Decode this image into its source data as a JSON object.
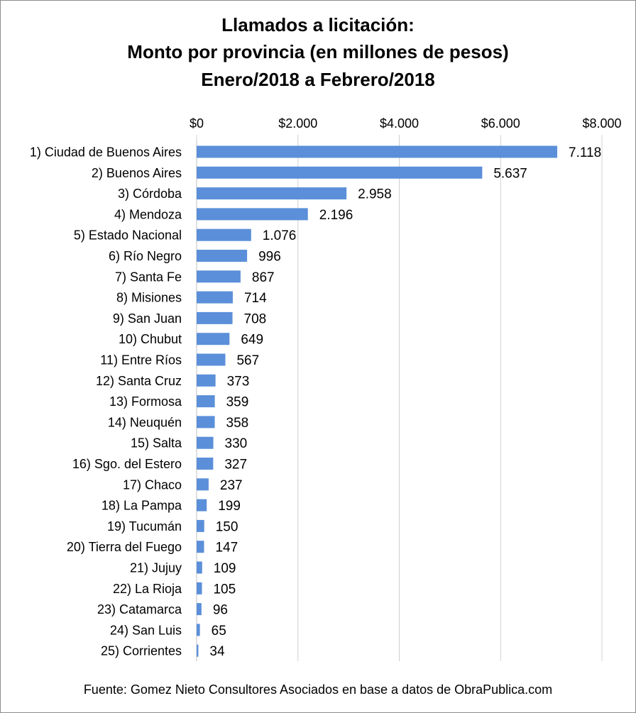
{
  "chart_data": {
    "type": "bar",
    "orientation": "horizontal",
    "title_lines": [
      "Llamados a licitación:",
      "Monto por provincia (en millones de pesos)",
      "Enero/2018 a Febrero/2018"
    ],
    "xlim": [
      0,
      8000
    ],
    "x_ticks": [
      0,
      2000,
      4000,
      6000,
      8000
    ],
    "x_tick_labels": [
      "$0",
      "$2.000",
      "$4.000",
      "$6.000",
      "$8.000"
    ],
    "x_axis_position": "top",
    "grid": true,
    "bar_color": "#5b8fd9",
    "categories": [
      "1) Ciudad de Buenos Aires",
      "2) Buenos Aires",
      "3) Córdoba",
      "4) Mendoza",
      "5) Estado Nacional",
      "6) Río Negro",
      "7) Santa Fe",
      "8) Misiones",
      "9) San Juan",
      "10) Chubut",
      "11) Entre Ríos",
      "12) Santa Cruz",
      "13) Formosa",
      "14) Neuquén",
      "15) Salta",
      "16) Sgo. del Estero",
      "17) Chaco",
      "18) La Pampa",
      "19) Tucumán",
      "20) Tierra del Fuego",
      "21) Jujuy",
      "22) La Rioja",
      "23) Catamarca",
      "24) San Luis",
      "25) Corrientes"
    ],
    "values": [
      7118,
      5637,
      2958,
      2196,
      1076,
      996,
      867,
      714,
      708,
      649,
      567,
      373,
      359,
      358,
      330,
      327,
      237,
      199,
      150,
      147,
      109,
      105,
      96,
      65,
      34
    ],
    "value_labels": [
      "7.118",
      "5.637",
      "2.958",
      "2.196",
      "1.076",
      "996",
      "867",
      "714",
      "708",
      "649",
      "567",
      "373",
      "359",
      "358",
      "330",
      "327",
      "237",
      "199",
      "150",
      "147",
      "109",
      "105",
      "96",
      "65",
      "34"
    ]
  },
  "footer": {
    "source": "Fuente: Gomez Nieto Consultores Asociados en base a datos de ObraPublica.com"
  }
}
